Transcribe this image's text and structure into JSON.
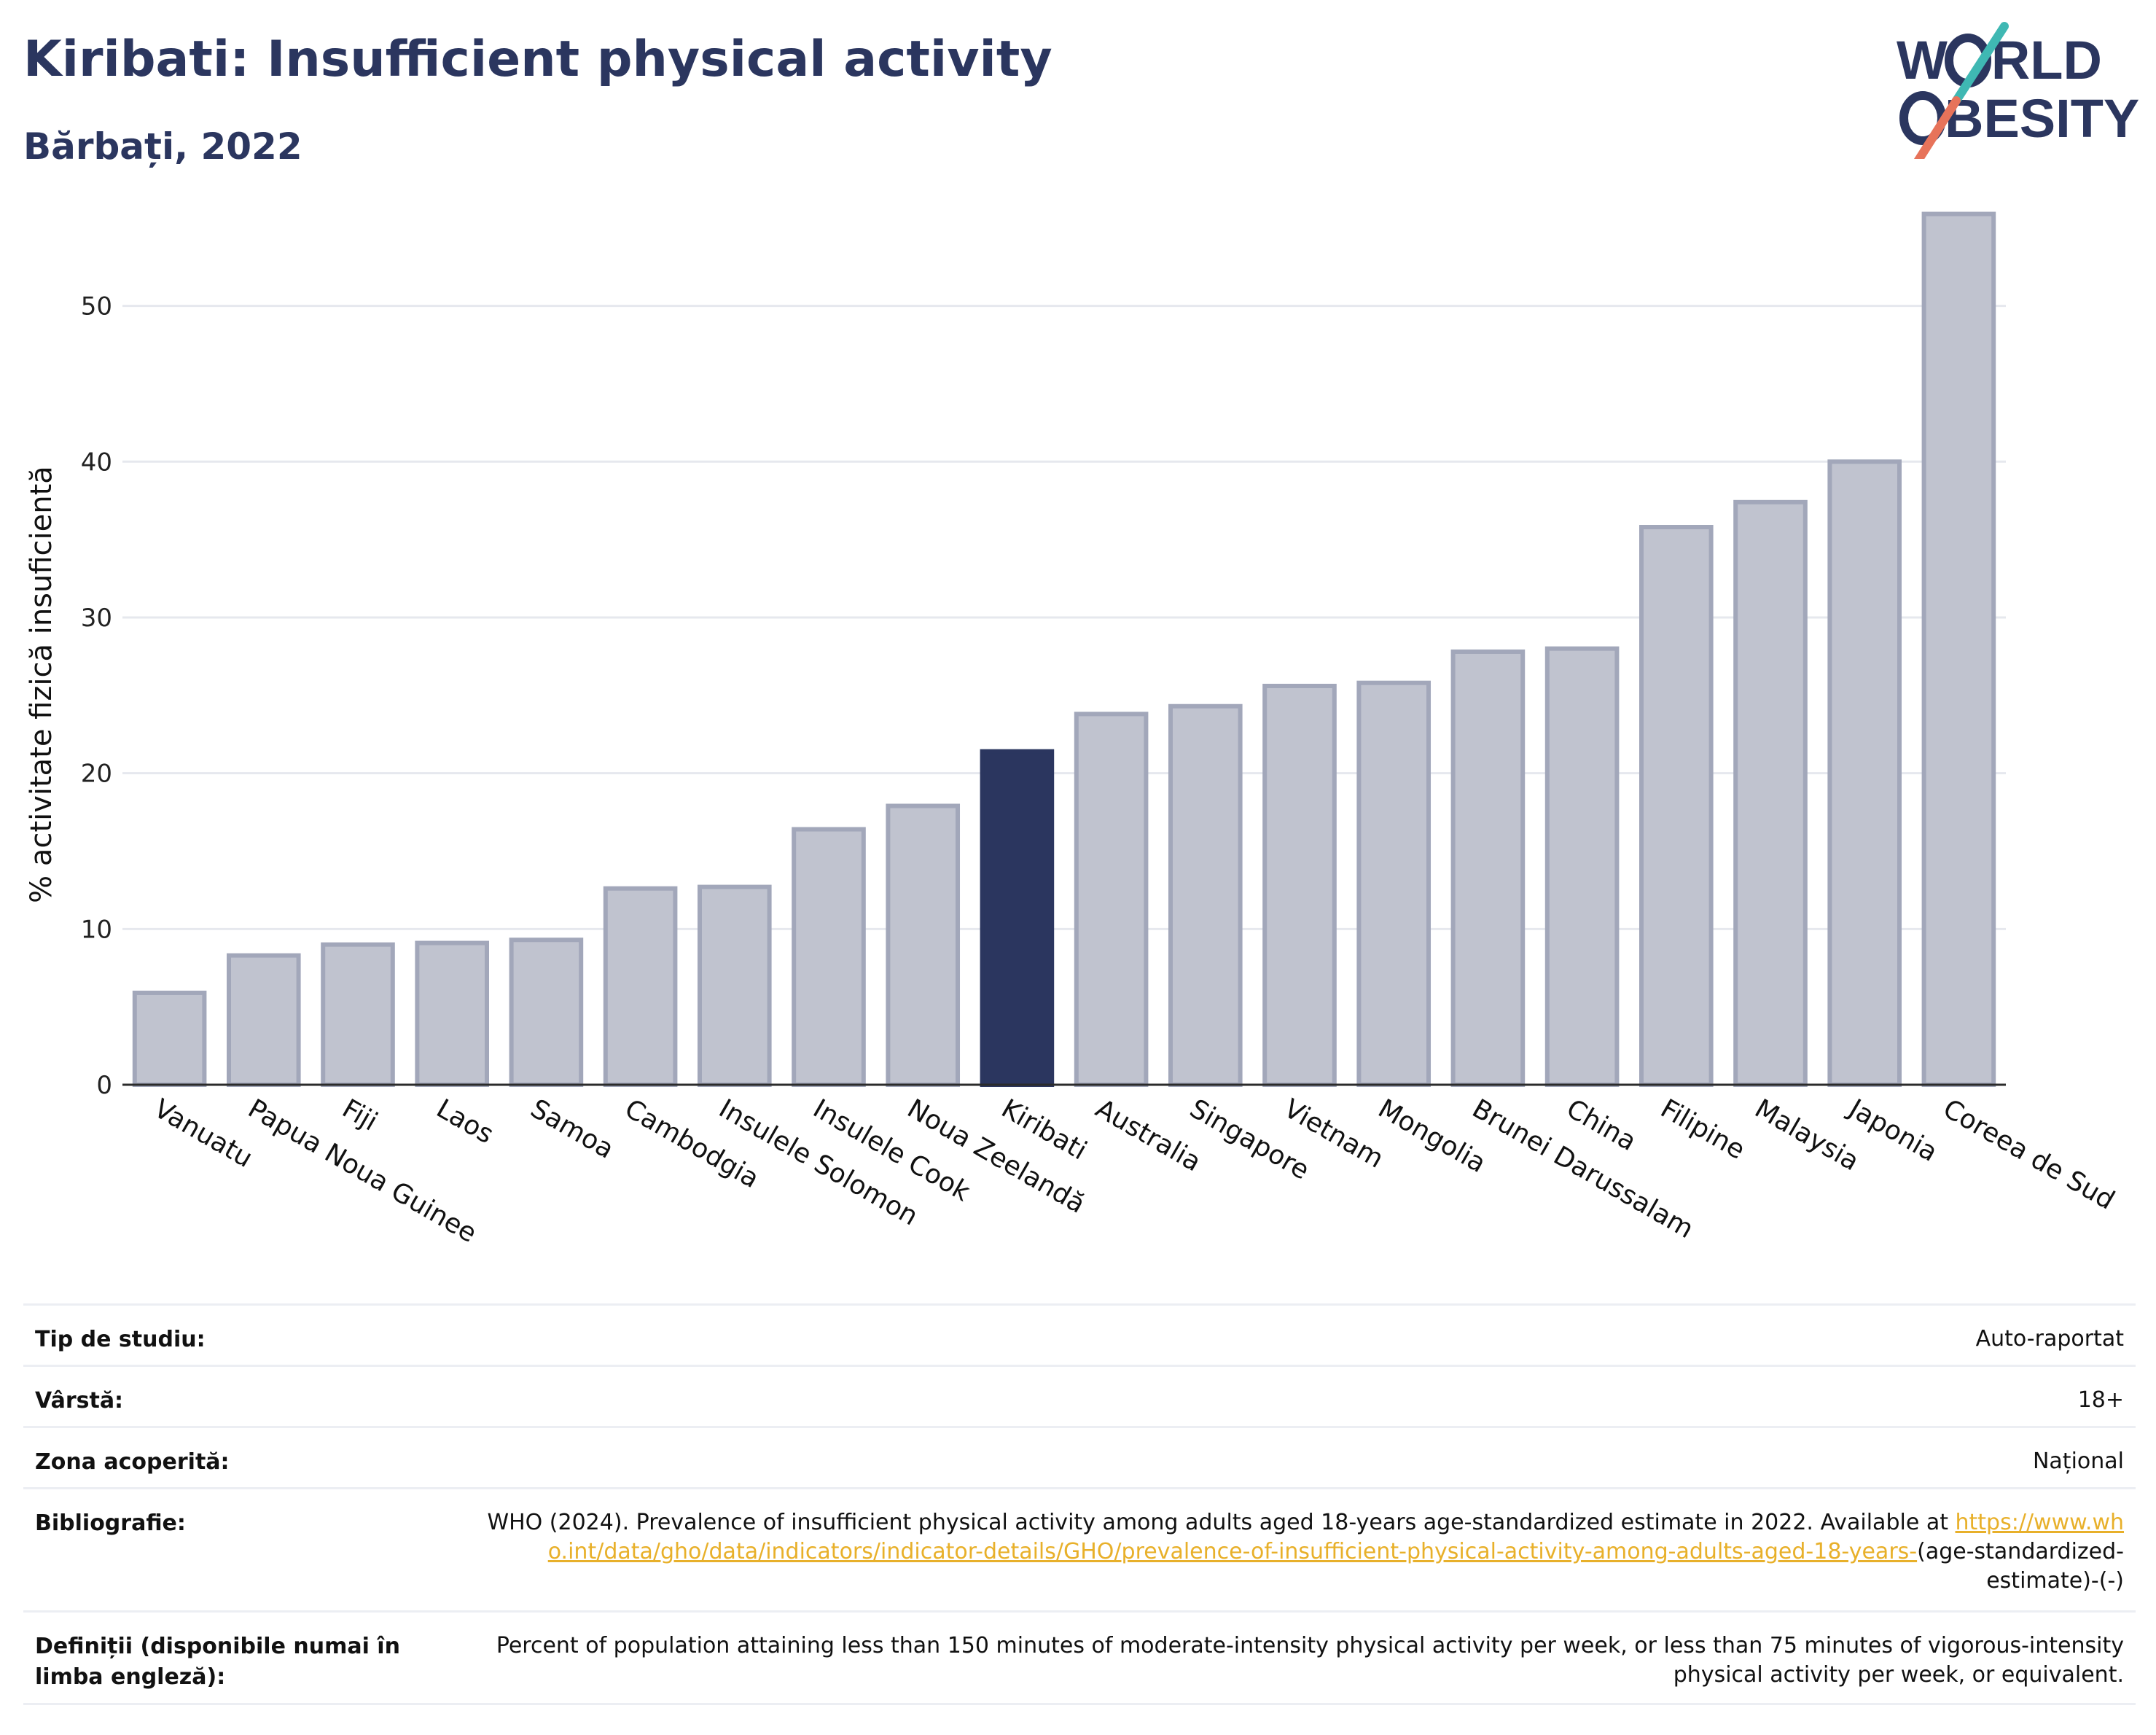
{
  "header": {
    "title": "Kiribati: Insufficient physical activity",
    "subtitle": "Bărbați, 2022"
  },
  "logo": {
    "line1": "W RLD",
    "line1_w": "W",
    "line1_rest": "RLD",
    "line2": "BESITY",
    "colors": {
      "text": "#2b365f",
      "slash_top": "#3fb8b3",
      "slash_bottom": "#e7735a"
    }
  },
  "chart_data": {
    "type": "bar",
    "title": "Kiribati: Insufficient physical activity",
    "subtitle": "Bărbați, 2022",
    "xlabel": "",
    "ylabel": "% activitate fizică insuficientă",
    "ylim": [
      0,
      57
    ],
    "yticks": [
      0,
      10,
      20,
      30,
      40,
      50
    ],
    "grid": true,
    "categories": [
      "Vanuatu",
      "Papua Noua Guinee",
      "Fiji",
      "Laos",
      "Samoa",
      "Cambodgia",
      "Insulele Solomon",
      "Insulele Cook",
      "Noua Zeelandă",
      "Kiribati",
      "Australia",
      "Singapore",
      "Vietnam",
      "Mongolia",
      "Brunei Darussalam",
      "China",
      "Filipine",
      "Malaysia",
      "Japonia",
      "Coreea de Sud"
    ],
    "values": [
      5.9,
      8.3,
      9.0,
      9.1,
      9.3,
      12.6,
      12.7,
      16.4,
      17.9,
      21.4,
      23.8,
      24.3,
      25.6,
      25.8,
      27.8,
      28.0,
      35.8,
      37.4,
      40.0,
      55.9
    ],
    "highlight": "Kiribati",
    "colors": {
      "bar": "#c0c3cf",
      "bar_border": "#a2a7ba",
      "highlight": "#2b365f",
      "grid": "#e6e8ee",
      "axis": "#2b2b2b"
    }
  },
  "info": {
    "rows": [
      {
        "label": "Tip de studiu:",
        "value": "Auto-raportat"
      },
      {
        "label": "Vârstă:",
        "value": "18+"
      },
      {
        "label": "Zona acoperită:",
        "value": "Național"
      }
    ],
    "bibliography": {
      "label": "Bibliografie:",
      "text": "WHO (2024). Prevalence of insufficient physical activity among adults aged 18-years age-standardized estimate in 2022. Available at",
      "link": "https://www.who.int/data/gho/data/indicators/indicator-details/GHO/prevalence-of-insufficient-physical-activity-among-adults-aged-18-years-",
      "suffix": "(age-standardized-estimate)-(-)"
    },
    "definitions": {
      "label": "Definiții (disponibile numai în limba engleză):",
      "value": "Percent of population attaining less than 150 minutes of moderate-intensity physical activity per week, or less than 75 minutes of vigorous-intensity physical activity per week, or equivalent."
    }
  }
}
